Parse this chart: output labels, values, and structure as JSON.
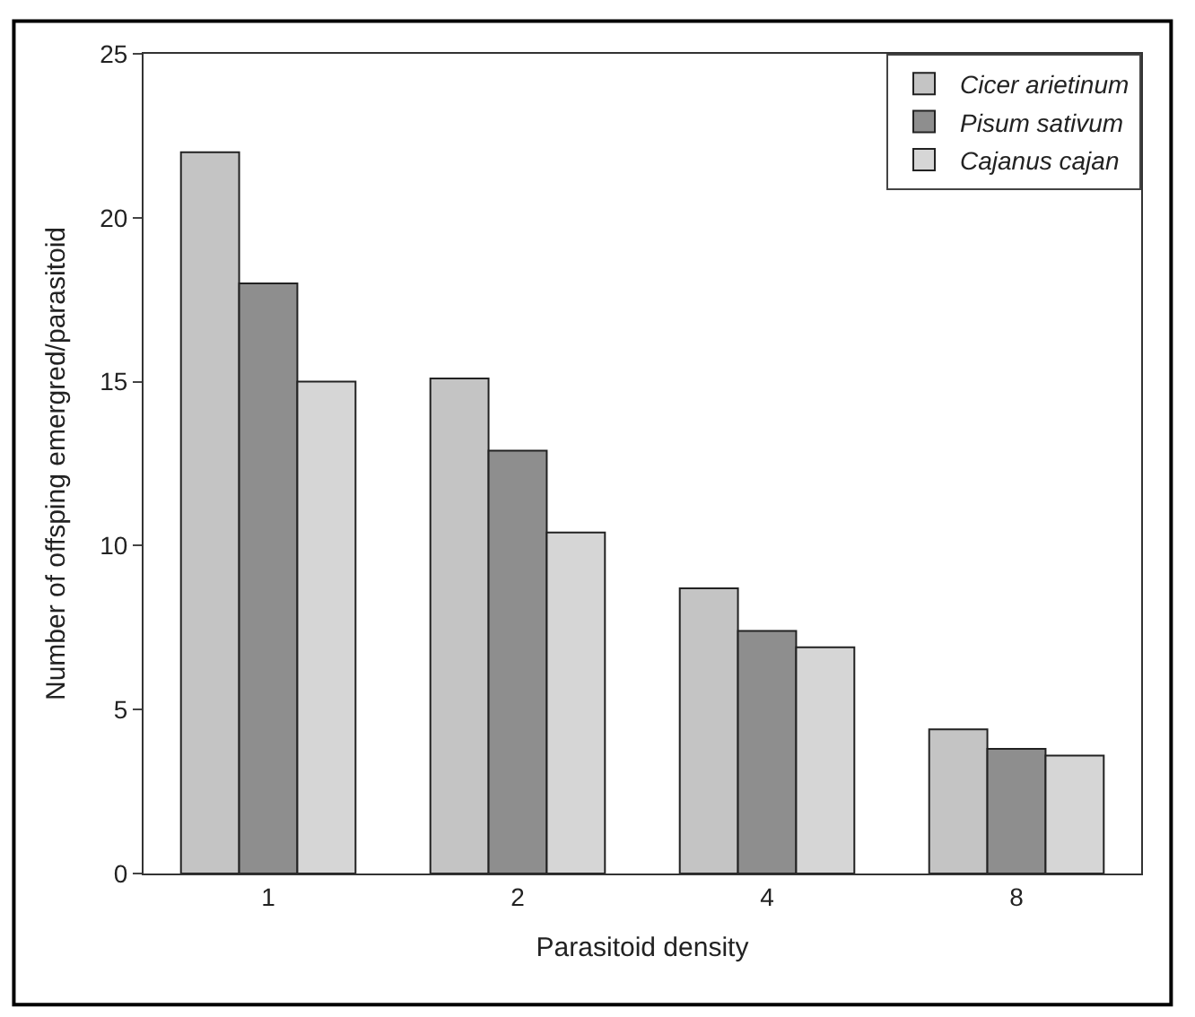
{
  "chart_data": {
    "type": "bar",
    "xlabel": "Parasitoid density",
    "ylabel": "Number of offsping emergred/parasitoid",
    "categories": [
      "1",
      "2",
      "4",
      "8"
    ],
    "series": [
      {
        "name": "Cicer arietinum",
        "color": "#c4c4c4",
        "values": [
          22,
          15.1,
          8.7,
          4.4
        ]
      },
      {
        "name": "Pisum sativum",
        "color": "#8e8e8e",
        "values": [
          18,
          12.9,
          7.4,
          3.8
        ]
      },
      {
        "name": "Cajanus cajan",
        "color": "#d6d6d6",
        "values": [
          15,
          10.4,
          6.9,
          3.6
        ]
      }
    ],
    "ylim": [
      0,
      25
    ],
    "yticks": [
      0,
      5,
      10,
      15,
      20,
      25
    ],
    "legend": "top right"
  }
}
